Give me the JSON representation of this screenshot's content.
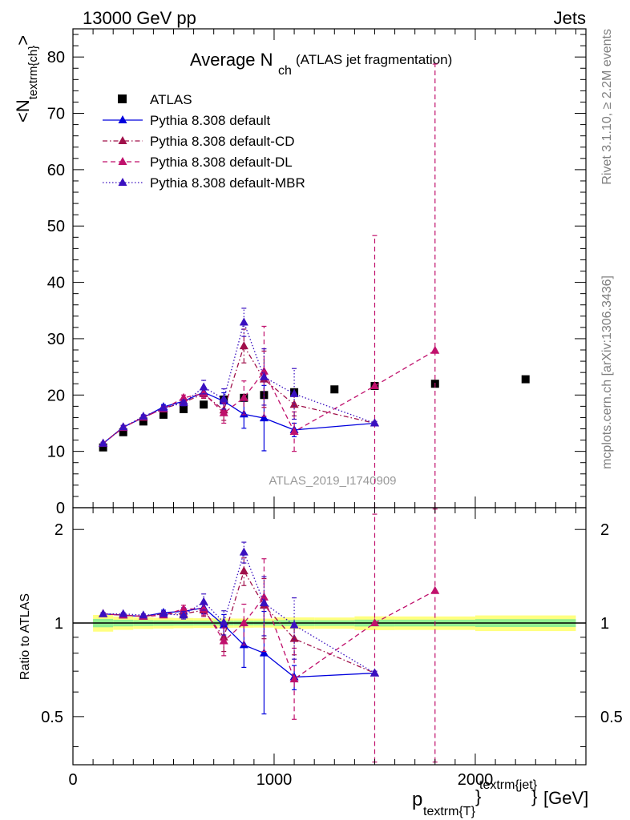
{
  "header": {
    "left": "13000 GeV pp",
    "right": "Jets"
  },
  "side_labels": {
    "rivet": "Rivet 3.1.10, ≥ 2.2M events",
    "mcplots": "mcplots.cern.ch [arXiv:1306.3436]"
  },
  "watermark": "ATLAS_2019_I1740909",
  "chart_data": [
    {
      "type": "scatter",
      "title_main": "Average N",
      "title_sub": "ch",
      "title_suffix": "(ATLAS jet fragmentation)",
      "ylabel": "<N",
      "ylabel_sub": "textrm{ch}",
      "ylabel_end": ">",
      "xlim": [
        0,
        2550
      ],
      "ylim": [
        0,
        85
      ],
      "y_ticks": [
        0,
        10,
        20,
        30,
        40,
        50,
        60,
        70,
        80
      ],
      "legend_position": "top-left",
      "series": [
        {
          "name": "ATLAS",
          "color": "#000000",
          "marker": "square",
          "line": "none",
          "x": [
            150,
            250,
            350,
            450,
            550,
            650,
            750,
            850,
            950,
            1100,
            1300,
            1500,
            1800,
            2250
          ],
          "y": [
            10.7,
            13.4,
            15.3,
            16.5,
            17.5,
            18.3,
            19.2,
            19.5,
            20.0,
            20.5,
            21.0,
            21.6,
            22.0,
            22.8
          ],
          "err": [
            0.3,
            0.3,
            0.3,
            0.3,
            0.3,
            0.3,
            0.3,
            0.3,
            0.3,
            0.4,
            0.4,
            0.5,
            0.5,
            0.6
          ]
        },
        {
          "name": "Pythia 8.308 default",
          "color": "#0000dd",
          "marker": "triangle",
          "line": "solid",
          "x": [
            150,
            250,
            350,
            450,
            550,
            650,
            750,
            850,
            950,
            1100,
            1500
          ],
          "y": [
            11.4,
            14.3,
            16.0,
            17.9,
            18.9,
            20.5,
            18.9,
            16.6,
            15.9,
            13.8,
            15.0
          ],
          "err": [
            0.2,
            0.3,
            0.3,
            0.4,
            0.5,
            0.8,
            1.5,
            2.5,
            5.8,
            1.2,
            0.3
          ]
        },
        {
          "name": "Pythia 8.308 default-CD",
          "color": "#a0104a",
          "marker": "triangle",
          "line": "dashdot",
          "x": [
            150,
            250,
            350,
            450,
            550,
            650,
            750,
            850,
            950,
            1100,
            1500
          ],
          "y": [
            11.4,
            14.3,
            16.0,
            17.6,
            18.7,
            20.2,
            17.3,
            28.7,
            22.8,
            18.3,
            15.0
          ],
          "err": [
            0.2,
            0.3,
            0.3,
            0.4,
            0.5,
            0.8,
            1.8,
            3.0,
            5.0,
            2.0,
            0.3
          ]
        },
        {
          "name": "Pythia 8.308 default-DL",
          "color": "#c0106c",
          "marker": "triangle",
          "line": "dashed",
          "x": [
            150,
            250,
            350,
            450,
            550,
            650,
            750,
            850,
            950,
            1100,
            1500,
            1800
          ],
          "y": [
            11.4,
            14.2,
            16.1,
            17.5,
            19.5,
            20.3,
            16.8,
            19.5,
            24.2,
            13.5,
            21.6,
            27.9
          ],
          "err": [
            0.2,
            0.3,
            0.3,
            0.4,
            0.5,
            0.8,
            1.8,
            3.0,
            8.0,
            3.5,
            26.7,
            54.0
          ]
        },
        {
          "name": "Pythia 8.308 default-MBR",
          "color": "#3a10c0",
          "marker": "triangle",
          "line": "dotted",
          "x": [
            150,
            250,
            350,
            450,
            550,
            650,
            750,
            850,
            950,
            1100,
            1500
          ],
          "y": [
            11.4,
            14.3,
            16.2,
            17.7,
            18.6,
            21.4,
            19.3,
            32.9,
            23.2,
            20.2,
            15.0
          ],
          "err": [
            0.2,
            0.3,
            0.3,
            0.4,
            0.5,
            1.2,
            1.8,
            2.5,
            5.0,
            4.5,
            0.3
          ]
        }
      ]
    },
    {
      "type": "scatter",
      "ylabel": "Ratio to ATLAS",
      "xlabel_main": "p",
      "xlabel_sub": "textrm{T}",
      "xlabel_sup": "textrm{jet}",
      "xlabel_unit": "[GeV]",
      "xlim": [
        0,
        2550
      ],
      "ylim": [
        0.35,
        2.35
      ],
      "y_ticks": [
        0.5,
        1,
        2
      ],
      "y_tick_labels": [
        "0.5",
        "1",
        "2"
      ],
      "x_ticks": [
        0,
        1000,
        2000
      ],
      "x_tick_labels": [
        "0",
        "1000",
        "2000"
      ],
      "band_color_outer": "#ffff80",
      "band_color_inner": "#90ee90",
      "series": [
        {
          "name": "Pythia 8.308 default",
          "color": "#0000dd",
          "line": "solid",
          "x": [
            150,
            250,
            350,
            450,
            550,
            650,
            750,
            850,
            950,
            1100,
            1500
          ],
          "y": [
            1.07,
            1.06,
            1.05,
            1.08,
            1.09,
            1.12,
            0.985,
            0.85,
            0.8,
            0.67,
            0.69
          ],
          "err": [
            0.01,
            0.01,
            0.01,
            0.02,
            0.03,
            0.05,
            0.08,
            0.13,
            0.29,
            0.06,
            0.01
          ]
        },
        {
          "name": "Pythia 8.308 default-CD",
          "color": "#a0104a",
          "line": "dashdot",
          "x": [
            150,
            250,
            350,
            450,
            550,
            650,
            750,
            850,
            950,
            1100,
            1500
          ],
          "y": [
            1.07,
            1.06,
            1.05,
            1.07,
            1.07,
            1.1,
            0.9,
            1.47,
            1.14,
            0.89,
            0.69
          ],
          "err": [
            0.01,
            0.01,
            0.01,
            0.02,
            0.03,
            0.05,
            0.09,
            0.15,
            0.25,
            0.1,
            0.01
          ]
        },
        {
          "name": "Pythia 8.308 default-DL",
          "color": "#c0106c",
          "line": "dashed",
          "x": [
            150,
            250,
            350,
            450,
            550,
            650,
            750,
            850,
            950,
            1100,
            1500,
            1800
          ],
          "y": [
            1.07,
            1.06,
            1.05,
            1.06,
            1.11,
            1.11,
            0.875,
            1.0,
            1.21,
            0.66,
            1.0,
            1.27
          ],
          "err": [
            0.01,
            0.01,
            0.01,
            0.02,
            0.03,
            0.05,
            0.09,
            0.15,
            0.4,
            0.17,
            1.24,
            2.45
          ]
        },
        {
          "name": "Pythia 8.308 default-MBR",
          "color": "#3a10c0",
          "line": "dotted",
          "x": [
            150,
            250,
            350,
            450,
            550,
            650,
            750,
            850,
            950,
            1100,
            1500
          ],
          "y": [
            1.07,
            1.07,
            1.06,
            1.07,
            1.06,
            1.17,
            1.005,
            1.69,
            1.16,
            0.985,
            0.69
          ],
          "err": [
            0.01,
            0.01,
            0.01,
            0.02,
            0.03,
            0.07,
            0.09,
            0.13,
            0.25,
            0.22,
            0.01
          ]
        }
      ]
    }
  ]
}
